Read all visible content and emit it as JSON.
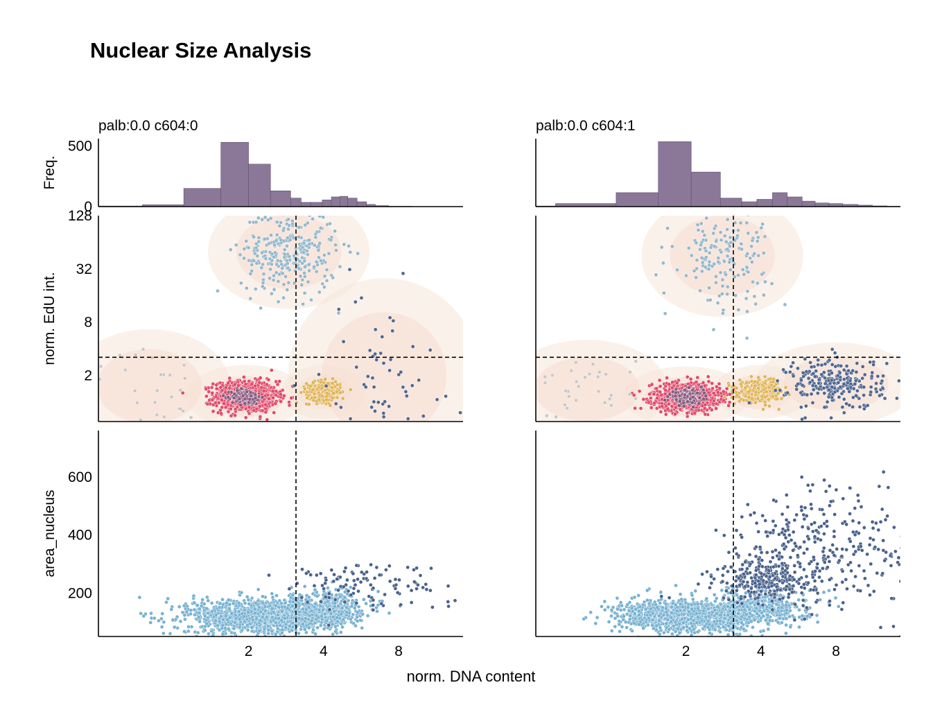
{
  "figure": {
    "title": "Nuclear Size Analysis",
    "shared_xlabel": "norm. DNA content"
  },
  "colors": {
    "histogram": "#8b7898",
    "g1": "#e04a6a",
    "g1_core": "#8a5a7e",
    "s_phase": "#94b8cc",
    "g2": "#e0b458",
    "polyploid": "#4e6890",
    "sub_g1": "#c8c8c8",
    "area_low": "#78b2d2",
    "area_high": "#4a628c",
    "kde": "#f6e6d8"
  },
  "chart_data": [
    {
      "type": "histogram",
      "panel": "hist-left",
      "title": "palb:0.0 c604:0",
      "ylabel": "Freq.",
      "xscale": "log2",
      "xlim": [
        0.5,
        14.5
      ],
      "ylim": [
        0,
        560
      ],
      "yticks": [
        0,
        500
      ],
      "bins": [
        {
          "x0": 0.5,
          "x1": 0.75,
          "count": 5
        },
        {
          "x0": 0.75,
          "x1": 1.1,
          "count": 15
        },
        {
          "x0": 1.1,
          "x1": 1.55,
          "count": 150
        },
        {
          "x0": 1.55,
          "x1": 2.0,
          "count": 530
        },
        {
          "x0": 2.0,
          "x1": 2.45,
          "count": 350
        },
        {
          "x0": 2.45,
          "x1": 2.95,
          "count": 130
        },
        {
          "x0": 2.95,
          "x1": 3.25,
          "count": 70
        },
        {
          "x0": 3.25,
          "x1": 3.55,
          "count": 35
        },
        {
          "x0": 3.55,
          "x1": 3.95,
          "count": 35
        },
        {
          "x0": 3.95,
          "x1": 4.3,
          "count": 55
        },
        {
          "x0": 4.3,
          "x1": 4.65,
          "count": 80
        },
        {
          "x0": 4.65,
          "x1": 5.0,
          "count": 85
        },
        {
          "x0": 5.0,
          "x1": 5.45,
          "count": 70
        },
        {
          "x0": 5.45,
          "x1": 5.95,
          "count": 40
        },
        {
          "x0": 5.95,
          "x1": 6.45,
          "count": 18
        },
        {
          "x0": 6.45,
          "x1": 7.3,
          "count": 8
        },
        {
          "x0": 7.3,
          "x1": 9.0,
          "count": 3
        },
        {
          "x0": 9.0,
          "x1": 12.0,
          "count": 1
        }
      ]
    },
    {
      "type": "histogram",
      "panel": "hist-right",
      "title": "palb:0.0 c604:1",
      "ylabel": "",
      "xscale": "log2",
      "xlim": [
        0.5,
        14.5
      ],
      "ylim": [
        0,
        560
      ],
      "yticks": [],
      "bins": [
        {
          "x0": 0.5,
          "x1": 0.6,
          "count": 5
        },
        {
          "x0": 0.6,
          "x1": 1.05,
          "count": 25
        },
        {
          "x0": 1.05,
          "x1": 1.55,
          "count": 115
        },
        {
          "x0": 1.55,
          "x1": 2.1,
          "count": 535
        },
        {
          "x0": 2.1,
          "x1": 2.75,
          "count": 285
        },
        {
          "x0": 2.75,
          "x1": 3.35,
          "count": 70
        },
        {
          "x0": 3.35,
          "x1": 3.85,
          "count": 40
        },
        {
          "x0": 3.85,
          "x1": 4.45,
          "count": 60
        },
        {
          "x0": 4.45,
          "x1": 5.1,
          "count": 115
        },
        {
          "x0": 5.1,
          "x1": 5.85,
          "count": 80
        },
        {
          "x0": 5.85,
          "x1": 6.6,
          "count": 45
        },
        {
          "x0": 6.6,
          "x1": 7.5,
          "count": 30
        },
        {
          "x0": 7.5,
          "x1": 8.5,
          "count": 25
        },
        {
          "x0": 8.5,
          "x1": 9.8,
          "count": 18
        },
        {
          "x0": 9.8,
          "x1": 11.2,
          "count": 12
        },
        {
          "x0": 11.2,
          "x1": 12.8,
          "count": 6
        },
        {
          "x0": 12.8,
          "x1": 14.5,
          "count": 3
        }
      ]
    },
    {
      "type": "scatter",
      "panel": "edu-left",
      "ylabel": "norm. EdU int.",
      "xscale": "log2",
      "yscale": "log2",
      "xlim": [
        0.5,
        14.5
      ],
      "ylim": [
        0.6,
        128
      ],
      "yticks": [
        2,
        8,
        32,
        128
      ],
      "xticks": [
        2,
        4,
        8
      ],
      "gate_x": 3.1,
      "gate_y": 3.2,
      "clusters": [
        {
          "phase": "g1",
          "n": 900,
          "x_center": 1.95,
          "y_center": 1.15,
          "x_spread": 0.13,
          "y_spread": 0.18,
          "color_key": "g1"
        },
        {
          "phase": "g1-core",
          "n": 200,
          "x_center": 1.95,
          "y_center": 1.15,
          "x_spread": 0.06,
          "y_spread": 0.09,
          "color_key": "g1_core"
        },
        {
          "phase": "g2",
          "n": 300,
          "x_center": 4.0,
          "y_center": 1.3,
          "x_spread": 0.07,
          "y_spread": 0.12,
          "color_key": "g2"
        },
        {
          "phase": "s",
          "n": 300,
          "x_center": 2.9,
          "y_center": 50,
          "x_spread": 0.2,
          "y_spread": 0.5,
          "color_key": "s_phase"
        },
        {
          "phase": "polyploid",
          "n": 60,
          "x_center": 7.0,
          "y_center": 2.0,
          "x_spread": 0.25,
          "y_spread": 1.0,
          "color_key": "polyploid"
        },
        {
          "phase": "sub-g1",
          "n": 25,
          "x_center": 0.8,
          "y_center": 1.5,
          "x_spread": 0.2,
          "y_spread": 0.5,
          "color_key": "sub_g1"
        }
      ]
    },
    {
      "type": "scatter",
      "panel": "edu-right",
      "ylabel": "",
      "xscale": "log2",
      "yscale": "log2",
      "xlim": [
        0.5,
        14.5
      ],
      "ylim": [
        0.6,
        128
      ],
      "yticks": [],
      "xticks": [
        2,
        4,
        8
      ],
      "gate_x": 3.1,
      "gate_y": 3.2,
      "clusters": [
        {
          "phase": "g1",
          "n": 900,
          "x_center": 2.0,
          "y_center": 1.15,
          "x_spread": 0.14,
          "y_spread": 0.16,
          "color_key": "g1"
        },
        {
          "phase": "g1-core",
          "n": 200,
          "x_center": 2.0,
          "y_center": 1.15,
          "x_spread": 0.07,
          "y_spread": 0.08,
          "color_key": "g1_core"
        },
        {
          "phase": "g2",
          "n": 400,
          "x_center": 4.0,
          "y_center": 1.3,
          "x_spread": 0.09,
          "y_spread": 0.12,
          "color_key": "g2"
        },
        {
          "phase": "s",
          "n": 160,
          "x_center": 2.8,
          "y_center": 45,
          "x_spread": 0.2,
          "y_spread": 0.55,
          "color_key": "s_phase"
        },
        {
          "phase": "polyploid",
          "n": 260,
          "x_center": 8.0,
          "y_center": 1.6,
          "x_spread": 0.2,
          "y_spread": 0.3,
          "color_key": "polyploid"
        },
        {
          "phase": "sub-g1",
          "n": 30,
          "x_center": 0.8,
          "y_center": 1.4,
          "x_spread": 0.2,
          "y_spread": 0.4,
          "color_key": "sub_g1"
        }
      ]
    },
    {
      "type": "scatter",
      "panel": "area-left",
      "ylabel": "area_nucleus",
      "xscale": "log2",
      "yscale": "linear",
      "xlim": [
        0.5,
        14.5
      ],
      "ylim": [
        50,
        760
      ],
      "yticks": [
        200,
        400,
        600
      ],
      "xticks": [
        2,
        4,
        8
      ],
      "gate_x": 3.1,
      "clusters": [
        {
          "phase": "small",
          "n": 1300,
          "x_center": 2.3,
          "y_center": 120,
          "x_spread": 0.32,
          "y_spread": 30,
          "color_key": "area_low"
        },
        {
          "phase": "small-g2",
          "n": 350,
          "x_center": 4.2,
          "y_center": 150,
          "x_spread": 0.15,
          "y_spread": 30,
          "color_key": "area_low"
        },
        {
          "phase": "large",
          "n": 110,
          "x_center": 5.5,
          "y_center": 230,
          "x_spread": 0.35,
          "y_spread": 45,
          "color_key": "area_high"
        }
      ]
    },
    {
      "type": "scatter",
      "panel": "area-right",
      "ylabel": "",
      "xscale": "log2",
      "yscale": "linear",
      "xlim": [
        0.5,
        14.5
      ],
      "ylim": [
        50,
        760
      ],
      "yticks": [],
      "xticks": [
        2,
        4,
        8
      ],
      "gate_x": 3.1,
      "clusters": [
        {
          "phase": "small",
          "n": 1200,
          "x_center": 2.1,
          "y_center": 120,
          "x_spread": 0.3,
          "y_spread": 28,
          "color_key": "area_low"
        },
        {
          "phase": "small-g2",
          "n": 350,
          "x_center": 4.0,
          "y_center": 150,
          "x_spread": 0.2,
          "y_spread": 30,
          "color_key": "area_low"
        },
        {
          "phase": "large-g2",
          "n": 280,
          "x_center": 4.2,
          "y_center": 250,
          "x_spread": 0.2,
          "y_spread": 40,
          "color_key": "area_high"
        },
        {
          "phase": "large-poly",
          "n": 320,
          "x_center": 8.0,
          "y_center": 360,
          "x_spread": 0.45,
          "y_spread": 110,
          "color_key": "area_high"
        }
      ]
    }
  ]
}
